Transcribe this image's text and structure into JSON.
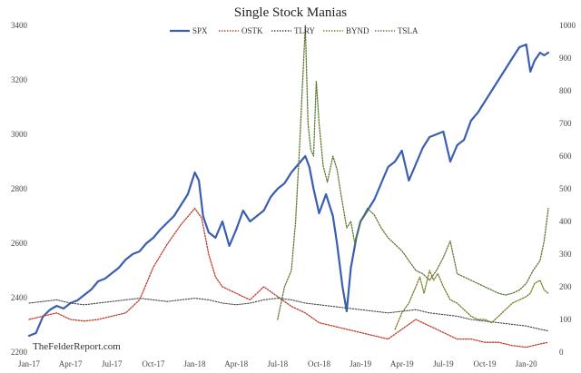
{
  "chart_data": {
    "type": "line",
    "title": "Single Stock Manias",
    "credit": "TheFelderReport.com",
    "x_tick_labels": [
      "Jan-17",
      "Apr-17",
      "Jul-17",
      "Oct-17",
      "Jan-18",
      "Apr-18",
      "Jul-18",
      "Oct-18",
      "Jan-19",
      "Apr-19",
      "Jul-19",
      "Oct-19",
      "Jan-20"
    ],
    "x_range": [
      0,
      37.6
    ],
    "y_left": {
      "min": 2200,
      "max": 3400,
      "ticks": [
        2200,
        2400,
        2600,
        2800,
        3000,
        3200,
        3400
      ],
      "tick_labels": [
        "2200",
        "2400",
        "2600",
        "2800",
        "3000",
        "3200",
        "3400"
      ]
    },
    "y_right": {
      "min": 0,
      "max": 1000,
      "ticks": [
        0,
        100,
        200,
        300,
        400,
        500,
        600,
        700,
        800,
        900,
        1000
      ],
      "tick_labels": [
        "0",
        "100",
        "200",
        "300",
        "400",
        "500",
        "600",
        "700",
        "800",
        "900",
        "1000"
      ]
    },
    "series": [
      {
        "name": "SPX",
        "axis": "left",
        "color": "#3a5fb0",
        "style": "solid",
        "width": 2.2,
        "x": [
          0,
          0.5,
          1,
          1.5,
          2,
          2.5,
          3,
          3.5,
          4,
          4.5,
          5,
          5.5,
          6,
          6.5,
          7,
          7.5,
          8,
          8.5,
          9,
          9.5,
          10,
          10.5,
          11,
          11.5,
          12,
          12.3,
          12.6,
          13,
          13.5,
          14,
          14.5,
          15,
          15.5,
          16,
          16.5,
          17,
          17.5,
          18,
          18.5,
          19,
          19.5,
          20,
          20.3,
          20.6,
          21,
          21.5,
          22,
          22.3,
          22.7,
          23,
          23.3,
          23.7,
          24,
          24.5,
          25,
          25.5,
          26,
          26.5,
          27,
          27.5,
          28,
          28.5,
          29,
          29.5,
          30,
          30.5,
          31,
          31.5,
          32,
          32.5,
          33,
          33.5,
          34,
          34.5,
          35,
          35.5,
          36,
          36.3,
          36.6,
          37,
          37.3,
          37.6
        ],
        "values": [
          2260,
          2270,
          2330,
          2355,
          2370,
          2360,
          2380,
          2390,
          2410,
          2430,
          2460,
          2470,
          2490,
          2510,
          2540,
          2560,
          2570,
          2600,
          2620,
          2650,
          2675,
          2700,
          2740,
          2780,
          2860,
          2830,
          2700,
          2640,
          2620,
          2680,
          2590,
          2650,
          2720,
          2680,
          2700,
          2720,
          2770,
          2800,
          2820,
          2860,
          2890,
          2920,
          2880,
          2800,
          2710,
          2780,
          2700,
          2600,
          2440,
          2350,
          2510,
          2620,
          2680,
          2720,
          2760,
          2820,
          2880,
          2900,
          2940,
          2830,
          2890,
          2950,
          2990,
          3000,
          3010,
          2900,
          2960,
          2980,
          3050,
          3080,
          3120,
          3160,
          3200,
          3240,
          3280,
          3320,
          3330,
          3230,
          3270,
          3300,
          3290,
          3300
        ]
      },
      {
        "name": "OSTK",
        "axis": "right",
        "color": "#c0392b",
        "style": "dotted",
        "width": 1.3,
        "x": [
          0,
          1,
          2,
          3,
          4,
          5,
          6,
          7,
          8,
          9,
          10,
          11,
          12,
          12.5,
          13,
          13.5,
          14,
          15,
          16,
          17,
          18,
          19,
          20,
          21,
          22,
          23,
          24,
          25,
          26,
          27,
          28,
          29,
          30,
          31,
          32,
          33,
          34,
          35,
          36,
          37,
          37.6
        ],
        "values": [
          100,
          110,
          120,
          100,
          95,
          100,
          110,
          120,
          160,
          260,
          330,
          390,
          440,
          410,
          300,
          230,
          200,
          180,
          160,
          200,
          170,
          140,
          120,
          90,
          80,
          70,
          60,
          50,
          40,
          70,
          100,
          80,
          60,
          40,
          40,
          30,
          30,
          20,
          15,
          25,
          30
        ]
      },
      {
        "name": "TLRY",
        "axis": "right",
        "color": "#444444",
        "style": "dotted",
        "width": 1.1,
        "x": [
          0,
          1,
          2,
          3,
          4,
          5,
          6,
          7,
          8,
          9,
          10,
          11,
          12,
          13,
          14,
          15,
          16,
          17,
          18,
          19,
          20,
          21,
          22,
          23,
          24,
          25,
          26,
          27,
          28,
          29,
          30,
          31,
          32,
          33,
          34,
          35,
          36,
          37,
          37.6
        ],
        "values": [
          150,
          155,
          160,
          150,
          145,
          150,
          155,
          160,
          165,
          160,
          155,
          160,
          165,
          160,
          150,
          145,
          150,
          160,
          165,
          160,
          150,
          145,
          140,
          135,
          130,
          125,
          120,
          125,
          130,
          120,
          115,
          110,
          100,
          95,
          90,
          85,
          80,
          70,
          65
        ]
      },
      {
        "name": "BYND",
        "axis": "right",
        "color": "#7a7a20",
        "style": "dotted",
        "width": 1.3,
        "x": [
          26.5,
          27,
          27.5,
          28,
          28.3,
          28.6,
          29,
          29.3,
          29.6,
          30,
          30.5,
          31,
          31.5,
          32,
          32.5,
          33,
          33.5,
          34,
          34.5,
          35,
          35.5,
          36,
          36.3,
          36.6,
          37,
          37.3,
          37.6
        ],
        "values": [
          70,
          120,
          150,
          200,
          230,
          180,
          250,
          220,
          240,
          200,
          160,
          150,
          130,
          110,
          100,
          100,
          90,
          110,
          130,
          150,
          160,
          170,
          180,
          210,
          220,
          190,
          180
        ]
      },
      {
        "name": "TSLA",
        "axis": "right",
        "color": "#5d7a32",
        "style": "dotted",
        "width": 1.3,
        "x": [
          18,
          18.5,
          19,
          19.3,
          19.6,
          20,
          20.2,
          20.4,
          20.6,
          20.8,
          21,
          21.3,
          21.6,
          22,
          22.3,
          22.6,
          23,
          23.3,
          23.6,
          24,
          24.5,
          25,
          25.5,
          26,
          26.5,
          27,
          27.5,
          28,
          28.5,
          29,
          29.5,
          30,
          30.5,
          31,
          31.5,
          32,
          32.5,
          33,
          33.5,
          34,
          34.5,
          35,
          35.5,
          36,
          36.5,
          37,
          37.3,
          37.6
        ],
        "values": [
          100,
          200,
          250,
          400,
          640,
          1000,
          700,
          620,
          600,
          830,
          700,
          570,
          520,
          600,
          560,
          480,
          380,
          400,
          330,
          400,
          440,
          420,
          380,
          350,
          330,
          310,
          280,
          250,
          240,
          220,
          250,
          290,
          340,
          240,
          230,
          220,
          210,
          200,
          190,
          180,
          175,
          180,
          190,
          210,
          250,
          280,
          340,
          440
        ]
      }
    ],
    "legend": [
      "SPX",
      "OSTK",
      "TLRY",
      "BYND",
      "TSLA"
    ],
    "legend_position": "top-center",
    "grid": false
  }
}
